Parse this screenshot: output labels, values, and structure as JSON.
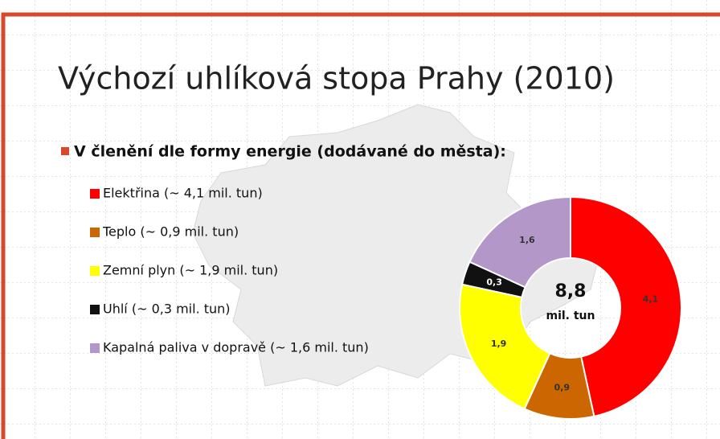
{
  "slide": {
    "title": "Výchozí uhlíková stopa Prahy (2010)",
    "heading": "V členění dle formy energie (dodávané do města):"
  },
  "chart_data": {
    "type": "donut",
    "categories": [
      "Elektřina (~ 4,1 mil. tun)",
      "Teplo (~ 0,9 mil. tun)",
      "Zemní plyn (~ 1,9 mil. tun)",
      "Uhlí (~ 0,3 mil. tun)",
      "Kapalná paliva v dopravě (~ 1,6 mil. tun)"
    ],
    "values": [
      4.1,
      0.9,
      1.9,
      0.3,
      1.6
    ],
    "value_labels": [
      "4,1",
      "0,9",
      "1,9",
      "0,3",
      "1,6"
    ],
    "colors": [
      "#ff0000",
      "#cc6600",
      "#ffff00",
      "#111111",
      "#b497c9"
    ],
    "total": 8.8,
    "total_label": "8,8",
    "total_unit": "mil. tun"
  }
}
